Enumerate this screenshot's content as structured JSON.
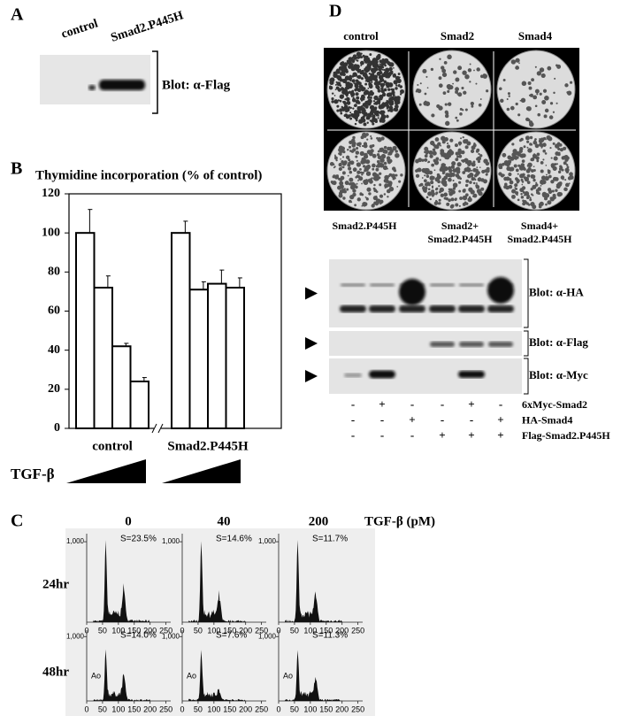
{
  "letters": [
    "A",
    "B",
    "C",
    "D"
  ],
  "panel_a": {
    "lanes": [
      "control",
      "Smad2.P445H"
    ],
    "blot": "Blot: α-Flag"
  },
  "chart_data": {
    "type": "bar",
    "title": "Thymidine incorporation (% of control)",
    "ylim": [
      0,
      120
    ],
    "yticks": [
      0,
      20,
      40,
      60,
      80,
      100,
      120
    ],
    "series": [
      {
        "name": "control",
        "color": "#ffffff",
        "values": [
          100,
          72,
          42,
          24
        ],
        "errors": [
          12,
          6,
          1.5,
          2
        ]
      },
      {
        "name": "Smad2.P445H",
        "color": "#ffffff",
        "values": [
          100,
          71,
          74,
          72
        ],
        "errors": [
          6,
          4,
          7,
          5
        ]
      }
    ],
    "treatment": "TGF-β"
  },
  "panel_c": {
    "treatment_label": "TGF-β (pM)",
    "doses": [
      "0",
      "40",
      "200"
    ],
    "times": [
      "24hr",
      "48hr"
    ],
    "xlim": [
      0,
      265
    ],
    "xticks": [
      0,
      50,
      100,
      150,
      200,
      250
    ],
    "ylim": [
      0,
      1100
    ],
    "yticks": [
      {
        "value": 1000,
        "label": "1,000"
      }
    ],
    "cells": [
      [
        {
          "s": "S=23.5%"
        },
        {
          "s": "S=14.6%"
        },
        {
          "s": "S=11.7%"
        }
      ],
      [
        {
          "s": "S=14.0%",
          "ao": "Ao"
        },
        {
          "s": "S=7.6%",
          "ao": "Ao"
        },
        {
          "s": "S=11.3%",
          "ao": "Ao"
        }
      ]
    ]
  },
  "panel_d": {
    "plates_top": [
      "control",
      "Smad2",
      "Smad4"
    ],
    "plates_bottom": [
      [
        "Smad2.P445H"
      ],
      [
        "Smad2+",
        "Smad2.P445H"
      ],
      [
        "Smad4+",
        "Smad2.P445H"
      ]
    ],
    "blots": [
      "Blot: α-HA",
      "Blot: α-Flag",
      "Blot: α-Myc"
    ],
    "rows": [
      {
        "label": "6xMyc-Smad2",
        "signs": [
          "-",
          "+",
          "-",
          "-",
          "+",
          "-"
        ]
      },
      {
        "label": "HA-Smad4",
        "signs": [
          "-",
          "-",
          "+",
          "-",
          "-",
          "+"
        ]
      },
      {
        "label": "Flag-Smad2.P445H",
        "signs": [
          "-",
          "-",
          "-",
          "+",
          "+",
          "+"
        ]
      }
    ]
  }
}
